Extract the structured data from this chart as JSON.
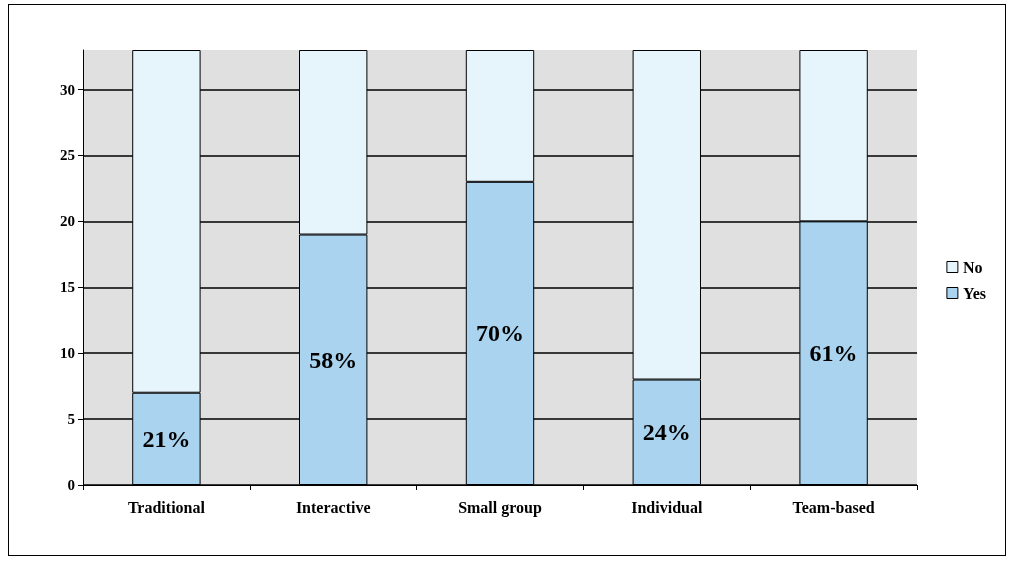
{
  "chart_data": {
    "type": "bar",
    "stacked": true,
    "categories": [
      "Traditional",
      "Interactive",
      "Small group",
      "Individual",
      "Team-based"
    ],
    "series": [
      {
        "name": "Yes",
        "color": "#a9d3ef",
        "values": [
          7,
          19,
          23,
          8,
          20
        ]
      },
      {
        "name": "No",
        "color": "#e6f4fb",
        "values": [
          26,
          14,
          10,
          25,
          13
        ]
      }
    ],
    "ylim": [
      0,
      33
    ],
    "yticks": [
      0,
      5,
      10,
      15,
      20,
      25,
      30
    ],
    "grid": "y",
    "legend": "right",
    "annotations": [
      "21%",
      "58%",
      "70%",
      "24%",
      "61%"
    ]
  }
}
